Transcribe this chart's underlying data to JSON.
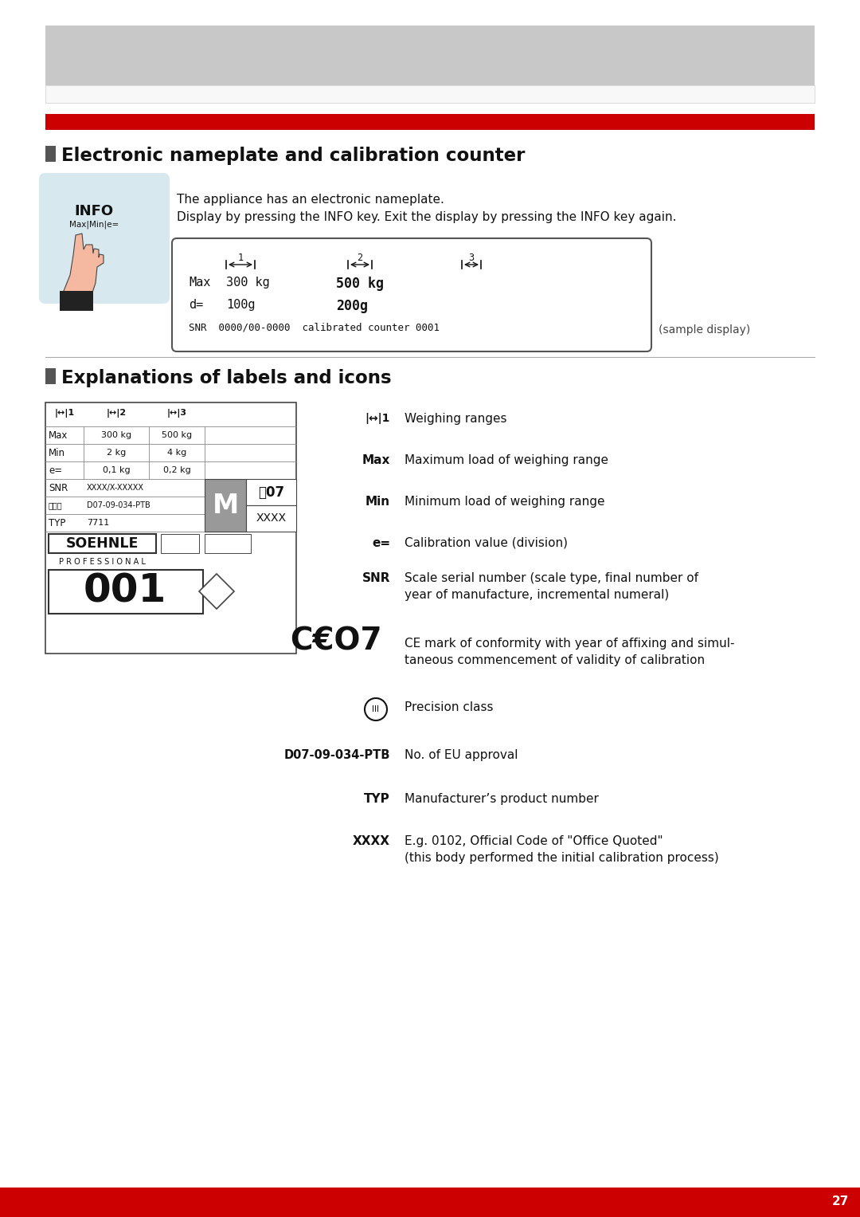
{
  "page_bg": "#ffffff",
  "header_gray": "#c8c8c8",
  "red_bar_color": "#cc0000",
  "section_square_color": "#555555",
  "title1": "Electronic nameplate and calibration counter",
  "title2": "Explanations of labels and icons",
  "info_text1": "The appliance has an electronic nameplate.",
  "info_text2": "Display by pressing the INFO key. Exit the display by pressing the INFO key again.",
  "sample_display_label": "(sample display)",
  "page_number": "27",
  "footer_red": "#cc0000",
  "footer_text_color": "#ffffff",
  "info_bg": "#d8e8ef",
  "hand_skin": "#f5b8a0",
  "hand_dark": "#222222"
}
